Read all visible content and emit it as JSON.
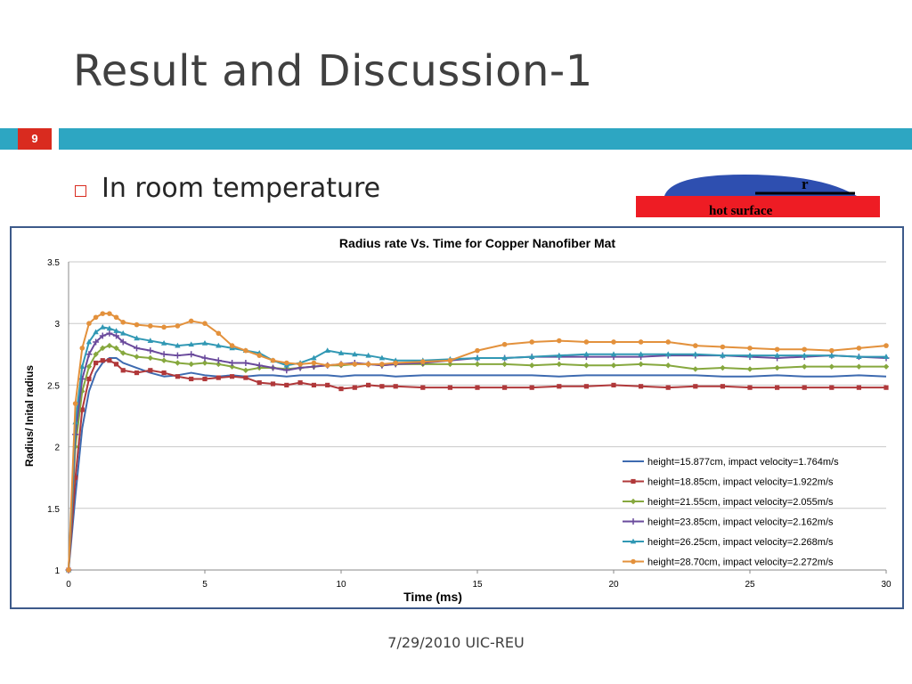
{
  "slide": {
    "title": "Result and Discussion-1",
    "number": "9",
    "bullet": "In room temperature",
    "footer": "7/29/2010 UIC-REU",
    "figure": {
      "radius_label": "r",
      "surface_label": "hot surface",
      "drop_color": "#2e4fb0",
      "surface_color": "#ee1c24"
    }
  },
  "colors": {
    "accent": "#2da6c2",
    "number_bg": "#d92b1f"
  },
  "chart_data": {
    "type": "line",
    "title": "Radius rate Vs. Time for Copper Nanofiber Mat",
    "xlabel": "Time (ms)",
    "ylabel": "Radius/ Inital radius",
    "xlim": [
      0,
      30
    ],
    "ylim": [
      1,
      3.5
    ],
    "xticks": [
      0,
      5,
      10,
      15,
      20,
      25,
      30
    ],
    "yticks": [
      1,
      1.5,
      2,
      2.5,
      3,
      3.5
    ],
    "grid": "horizontal",
    "legend": "bottom-right",
    "x": [
      0,
      0.25,
      0.5,
      0.75,
      1,
      1.25,
      1.5,
      1.75,
      2,
      2.5,
      3,
      3.5,
      4,
      4.5,
      5,
      5.5,
      6,
      6.5,
      7,
      7.5,
      8,
      8.5,
      9,
      9.5,
      10,
      10.5,
      11,
      11.5,
      12,
      13,
      14,
      15,
      16,
      17,
      18,
      19,
      20,
      21,
      22,
      23,
      24,
      25,
      26,
      27,
      28,
      29,
      30
    ],
    "series": [
      {
        "name": "height=15.877cm, impact velocity=1.764m/s",
        "color": "#3d6ab0",
        "marker": "none",
        "values": [
          1.0,
          1.6,
          2.15,
          2.45,
          2.6,
          2.68,
          2.72,
          2.72,
          2.68,
          2.64,
          2.6,
          2.57,
          2.58,
          2.6,
          2.58,
          2.57,
          2.58,
          2.57,
          2.58,
          2.58,
          2.57,
          2.58,
          2.58,
          2.58,
          2.57,
          2.58,
          2.58,
          2.58,
          2.57,
          2.58,
          2.58,
          2.58,
          2.58,
          2.58,
          2.57,
          2.58,
          2.58,
          2.58,
          2.58,
          2.58,
          2.57,
          2.57,
          2.58,
          2.57,
          2.57,
          2.58,
          2.57
        ]
      },
      {
        "name": "height=18.85cm, impact velocity=1.922m/s",
        "color": "#b0383a",
        "marker": "square",
        "values": [
          1.0,
          1.75,
          2.3,
          2.55,
          2.68,
          2.7,
          2.7,
          2.67,
          2.62,
          2.6,
          2.62,
          2.6,
          2.57,
          2.55,
          2.55,
          2.56,
          2.57,
          2.56,
          2.52,
          2.51,
          2.5,
          2.52,
          2.5,
          2.5,
          2.47,
          2.48,
          2.5,
          2.49,
          2.49,
          2.48,
          2.48,
          2.48,
          2.48,
          2.48,
          2.49,
          2.49,
          2.5,
          2.49,
          2.48,
          2.49,
          2.49,
          2.48,
          2.48,
          2.48,
          2.48,
          2.48,
          2.48
        ]
      },
      {
        "name": "height=21.55cm, impact velocity=2.055m/s",
        "color": "#86a83e",
        "marker": "diamond",
        "values": [
          1.0,
          2.0,
          2.45,
          2.65,
          2.75,
          2.8,
          2.82,
          2.8,
          2.76,
          2.73,
          2.72,
          2.7,
          2.68,
          2.67,
          2.68,
          2.67,
          2.65,
          2.62,
          2.64,
          2.64,
          2.63,
          2.64,
          2.65,
          2.66,
          2.66,
          2.67,
          2.67,
          2.66,
          2.67,
          2.67,
          2.67,
          2.67,
          2.67,
          2.66,
          2.67,
          2.66,
          2.66,
          2.67,
          2.66,
          2.63,
          2.64,
          2.63,
          2.64,
          2.65,
          2.65,
          2.65,
          2.65
        ]
      },
      {
        "name": "height=23.85cm, impact velocity=2.162m/s",
        "color": "#6a4a9c",
        "marker": "plus",
        "values": [
          1.0,
          2.1,
          2.55,
          2.75,
          2.85,
          2.9,
          2.92,
          2.9,
          2.85,
          2.8,
          2.78,
          2.75,
          2.74,
          2.75,
          2.72,
          2.7,
          2.68,
          2.68,
          2.66,
          2.64,
          2.62,
          2.64,
          2.65,
          2.66,
          2.67,
          2.68,
          2.67,
          2.66,
          2.67,
          2.68,
          2.7,
          2.72,
          2.72,
          2.73,
          2.73,
          2.73,
          2.73,
          2.73,
          2.74,
          2.74,
          2.74,
          2.73,
          2.72,
          2.73,
          2.74,
          2.73,
          2.72
        ]
      },
      {
        "name": "height=26.25cm, impact velocity=2.268m/s",
        "color": "#3198b4",
        "marker": "triangle",
        "values": [
          1.0,
          2.2,
          2.65,
          2.85,
          2.93,
          2.97,
          2.96,
          2.94,
          2.92,
          2.88,
          2.86,
          2.84,
          2.82,
          2.83,
          2.84,
          2.82,
          2.8,
          2.78,
          2.76,
          2.7,
          2.66,
          2.68,
          2.72,
          2.78,
          2.76,
          2.75,
          2.74,
          2.72,
          2.7,
          2.7,
          2.71,
          2.72,
          2.72,
          2.73,
          2.74,
          2.75,
          2.75,
          2.75,
          2.75,
          2.75,
          2.74,
          2.74,
          2.74,
          2.74,
          2.74,
          2.73,
          2.73
        ]
      },
      {
        "name": "height=28.70cm, impact velocity=2.272m/s",
        "color": "#e3913c",
        "marker": "circle",
        "values": [
          1.0,
          2.35,
          2.8,
          3.0,
          3.05,
          3.08,
          3.08,
          3.05,
          3.01,
          2.99,
          2.98,
          2.97,
          2.98,
          3.02,
          3.0,
          2.92,
          2.82,
          2.78,
          2.74,
          2.7,
          2.68,
          2.67,
          2.68,
          2.66,
          2.67,
          2.67,
          2.67,
          2.67,
          2.68,
          2.69,
          2.7,
          2.78,
          2.83,
          2.85,
          2.86,
          2.85,
          2.85,
          2.85,
          2.85,
          2.82,
          2.81,
          2.8,
          2.79,
          2.79,
          2.78,
          2.8,
          2.82
        ]
      }
    ]
  }
}
